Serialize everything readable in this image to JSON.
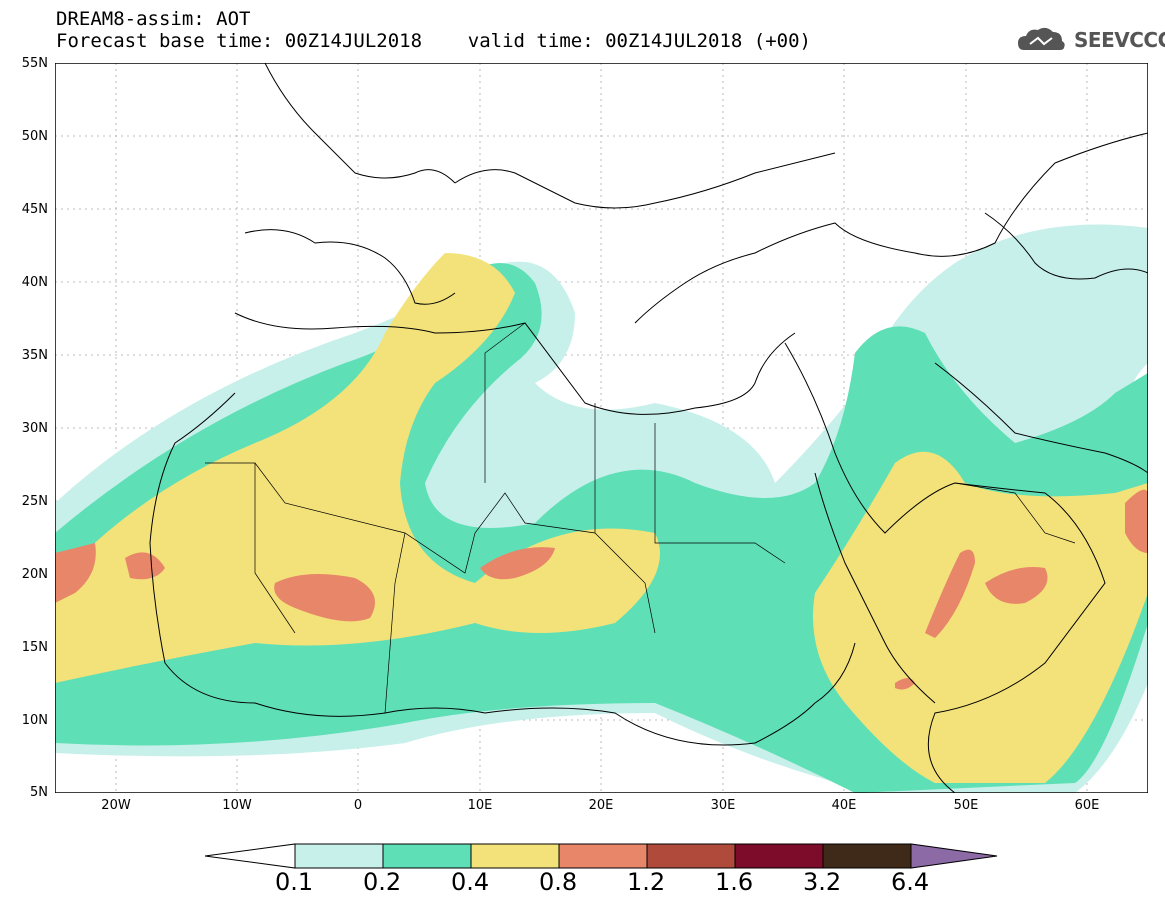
{
  "header": {
    "line1": "DREAM8-assim: AOT",
    "line2": "Forecast base time: 00Z14JUL2018    valid time: 00Z14JUL2018 (+00)"
  },
  "logo": {
    "text": "SEEVCCC",
    "icon": "cloud-icon"
  },
  "axes": {
    "lat_labels": [
      "55N",
      "50N",
      "45N",
      "40N",
      "35N",
      "30N",
      "25N",
      "20N",
      "15N",
      "10N",
      "5N"
    ],
    "lon_labels": [
      "20W",
      "10W",
      "0",
      "10E",
      "20E",
      "30E",
      "40E",
      "50E",
      "60E"
    ]
  },
  "colorbar": {
    "labels": [
      "0.1",
      "0.2",
      "0.4",
      "0.8",
      "1.2",
      "1.6",
      "3.2",
      "6.4"
    ],
    "colors": [
      "#c7f0ea",
      "#5fdfb6",
      "#f3e27a",
      "#e8866a",
      "#b04b3c",
      "#7d0b2a",
      "#3f2a19",
      "#8c6aa6"
    ]
  }
}
